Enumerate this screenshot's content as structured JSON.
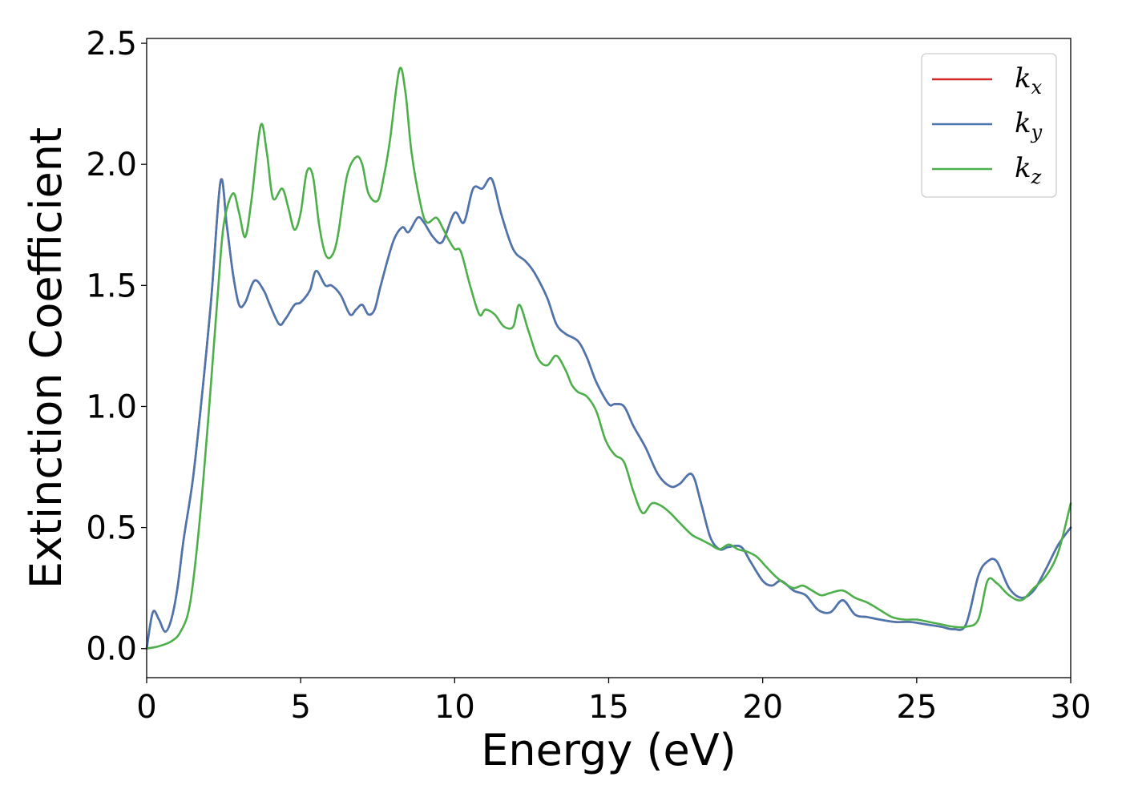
{
  "chart_data": {
    "type": "line",
    "title": "",
    "xlabel": "Energy (eV)",
    "ylabel": "Extinction Coefficient",
    "xlim": [
      0,
      30
    ],
    "ylim": [
      -0.12,
      2.52
    ],
    "xticks": [
      0,
      5,
      10,
      15,
      20,
      25,
      30
    ],
    "xtick_labels": [
      "0",
      "5",
      "10",
      "15",
      "20",
      "25",
      "30"
    ],
    "yticks": [
      0.0,
      0.5,
      1.0,
      1.5,
      2.0,
      2.5
    ],
    "ytick_labels": [
      "0.0",
      "0.5",
      "1.0",
      "1.5",
      "2.0",
      "2.5"
    ],
    "grid": false,
    "legend_position": "top-right",
    "series": [
      {
        "name": "k_x",
        "legend_main": "k",
        "legend_sub": "x",
        "color": "#d62728",
        "x": [
          0,
          0.2,
          0.4,
          0.6,
          0.8,
          1.0,
          1.2,
          1.5,
          1.8,
          2.1,
          2.4,
          2.6,
          2.8,
          3.0,
          3.2,
          3.5,
          3.8,
          4.0,
          4.3,
          4.5,
          4.8,
          5.0,
          5.3,
          5.5,
          5.8,
          6.0,
          6.3,
          6.6,
          6.8,
          7.0,
          7.2,
          7.4,
          7.6,
          8.0,
          8.3,
          8.5,
          8.8,
          9.0,
          9.3,
          9.6,
          10.0,
          10.3,
          10.6,
          10.9,
          11.2,
          11.5,
          11.8,
          12.0,
          12.3,
          12.6,
          13.0,
          13.3,
          13.6,
          14.0,
          14.3,
          14.6,
          15.0,
          15.2,
          15.5,
          15.8,
          16.2,
          16.6,
          17.0,
          17.3,
          17.7,
          18.0,
          18.3,
          18.6,
          18.9,
          19.3,
          19.6,
          20.0,
          20.3,
          20.6,
          21.0,
          21.4,
          21.8,
          22.2,
          22.6,
          23.0,
          23.4,
          23.8,
          24.3,
          24.8,
          25.3,
          25.8,
          26.2,
          26.6,
          27.0,
          27.3,
          27.6,
          28.0,
          28.4,
          28.8,
          29.2,
          29.6,
          30.0
        ],
        "y": [
          0.0,
          0.15,
          0.12,
          0.07,
          0.12,
          0.25,
          0.45,
          0.7,
          1.05,
          1.45,
          1.93,
          1.75,
          1.55,
          1.42,
          1.43,
          1.52,
          1.48,
          1.42,
          1.34,
          1.36,
          1.42,
          1.43,
          1.48,
          1.56,
          1.5,
          1.5,
          1.46,
          1.38,
          1.4,
          1.42,
          1.38,
          1.4,
          1.5,
          1.68,
          1.74,
          1.72,
          1.78,
          1.76,
          1.7,
          1.68,
          1.8,
          1.76,
          1.9,
          1.9,
          1.94,
          1.8,
          1.68,
          1.63,
          1.6,
          1.55,
          1.45,
          1.34,
          1.3,
          1.27,
          1.2,
          1.1,
          1.01,
          1.01,
          1.0,
          0.92,
          0.83,
          0.72,
          0.67,
          0.68,
          0.72,
          0.6,
          0.46,
          0.41,
          0.42,
          0.42,
          0.36,
          0.28,
          0.26,
          0.28,
          0.24,
          0.22,
          0.16,
          0.15,
          0.2,
          0.14,
          0.13,
          0.12,
          0.11,
          0.11,
          0.1,
          0.09,
          0.08,
          0.1,
          0.3,
          0.36,
          0.36,
          0.25,
          0.21,
          0.24,
          0.33,
          0.43,
          0.5
        ]
      },
      {
        "name": "k_y",
        "legend_main": "k",
        "legend_sub": "y",
        "color": "#4a76b0",
        "x": [
          0,
          0.2,
          0.4,
          0.6,
          0.8,
          1.0,
          1.2,
          1.5,
          1.8,
          2.1,
          2.4,
          2.6,
          2.8,
          3.0,
          3.2,
          3.5,
          3.8,
          4.0,
          4.3,
          4.5,
          4.8,
          5.0,
          5.3,
          5.5,
          5.8,
          6.0,
          6.3,
          6.6,
          6.8,
          7.0,
          7.2,
          7.4,
          7.6,
          8.0,
          8.3,
          8.5,
          8.8,
          9.0,
          9.3,
          9.6,
          10.0,
          10.3,
          10.6,
          10.9,
          11.2,
          11.5,
          11.8,
          12.0,
          12.3,
          12.6,
          13.0,
          13.3,
          13.6,
          14.0,
          14.3,
          14.6,
          15.0,
          15.2,
          15.5,
          15.8,
          16.2,
          16.6,
          17.0,
          17.3,
          17.7,
          18.0,
          18.3,
          18.6,
          18.9,
          19.3,
          19.6,
          20.0,
          20.3,
          20.6,
          21.0,
          21.4,
          21.8,
          22.2,
          22.6,
          23.0,
          23.4,
          23.8,
          24.3,
          24.8,
          25.3,
          25.8,
          26.2,
          26.6,
          27.0,
          27.3,
          27.6,
          28.0,
          28.4,
          28.8,
          29.2,
          29.6,
          30.0
        ],
        "y": [
          0.0,
          0.15,
          0.12,
          0.07,
          0.12,
          0.25,
          0.45,
          0.7,
          1.05,
          1.45,
          1.93,
          1.75,
          1.55,
          1.42,
          1.43,
          1.52,
          1.48,
          1.42,
          1.34,
          1.36,
          1.42,
          1.43,
          1.48,
          1.56,
          1.5,
          1.5,
          1.46,
          1.38,
          1.4,
          1.42,
          1.38,
          1.4,
          1.5,
          1.68,
          1.74,
          1.72,
          1.78,
          1.76,
          1.7,
          1.68,
          1.8,
          1.76,
          1.9,
          1.9,
          1.94,
          1.8,
          1.68,
          1.63,
          1.6,
          1.55,
          1.45,
          1.34,
          1.3,
          1.27,
          1.2,
          1.1,
          1.01,
          1.01,
          1.0,
          0.92,
          0.83,
          0.72,
          0.67,
          0.68,
          0.72,
          0.6,
          0.46,
          0.41,
          0.42,
          0.42,
          0.36,
          0.28,
          0.26,
          0.28,
          0.24,
          0.22,
          0.16,
          0.15,
          0.2,
          0.14,
          0.13,
          0.12,
          0.11,
          0.11,
          0.1,
          0.09,
          0.08,
          0.1,
          0.3,
          0.36,
          0.36,
          0.25,
          0.21,
          0.24,
          0.33,
          0.43,
          0.5
        ]
      },
      {
        "name": "k_z",
        "legend_main": "k",
        "legend_sub": "z",
        "color": "#4daf4a",
        "x": [
          0,
          0.4,
          0.8,
          1.1,
          1.4,
          1.7,
          2.0,
          2.3,
          2.5,
          2.8,
          3.0,
          3.2,
          3.4,
          3.7,
          3.9,
          4.1,
          4.4,
          4.6,
          4.8,
          5.0,
          5.2,
          5.4,
          5.6,
          5.8,
          6.0,
          6.2,
          6.5,
          6.8,
          7.0,
          7.2,
          7.5,
          7.7,
          7.9,
          8.2,
          8.4,
          8.6,
          8.9,
          9.1,
          9.4,
          9.6,
          9.8,
          10.0,
          10.2,
          10.5,
          10.8,
          11.0,
          11.3,
          11.6,
          11.9,
          12.1,
          12.4,
          12.7,
          13.0,
          13.3,
          13.6,
          13.8,
          14.0,
          14.3,
          14.6,
          14.9,
          15.2,
          15.5,
          15.8,
          16.1,
          16.4,
          16.7,
          17.0,
          17.3,
          17.7,
          18.0,
          18.3,
          18.6,
          18.9,
          19.2,
          19.5,
          19.8,
          20.1,
          20.4,
          20.7,
          21.0,
          21.3,
          21.6,
          21.9,
          22.2,
          22.6,
          23.0,
          23.4,
          23.8,
          24.2,
          24.6,
          25.0,
          25.4,
          25.8,
          26.2,
          26.6,
          27.0,
          27.3,
          27.6,
          28.0,
          28.4,
          28.8,
          29.2,
          29.6,
          30.0
        ],
        "y": [
          0.0,
          0.01,
          0.03,
          0.07,
          0.18,
          0.5,
          0.95,
          1.45,
          1.75,
          1.88,
          1.8,
          1.7,
          1.85,
          2.16,
          2.05,
          1.86,
          1.9,
          1.82,
          1.73,
          1.8,
          1.97,
          1.95,
          1.75,
          1.63,
          1.62,
          1.7,
          1.95,
          2.03,
          2.0,
          1.88,
          1.85,
          1.95,
          2.1,
          2.39,
          2.3,
          2.05,
          1.83,
          1.76,
          1.78,
          1.74,
          1.69,
          1.65,
          1.64,
          1.5,
          1.38,
          1.4,
          1.38,
          1.33,
          1.33,
          1.42,
          1.31,
          1.2,
          1.17,
          1.21,
          1.15,
          1.09,
          1.06,
          1.04,
          0.98,
          0.86,
          0.8,
          0.77,
          0.65,
          0.56,
          0.6,
          0.59,
          0.56,
          0.52,
          0.47,
          0.45,
          0.43,
          0.41,
          0.43,
          0.41,
          0.4,
          0.38,
          0.34,
          0.3,
          0.27,
          0.25,
          0.26,
          0.24,
          0.22,
          0.23,
          0.24,
          0.21,
          0.19,
          0.16,
          0.13,
          0.12,
          0.12,
          0.11,
          0.1,
          0.09,
          0.09,
          0.12,
          0.28,
          0.27,
          0.22,
          0.2,
          0.25,
          0.3,
          0.4,
          0.6
        ]
      }
    ]
  }
}
